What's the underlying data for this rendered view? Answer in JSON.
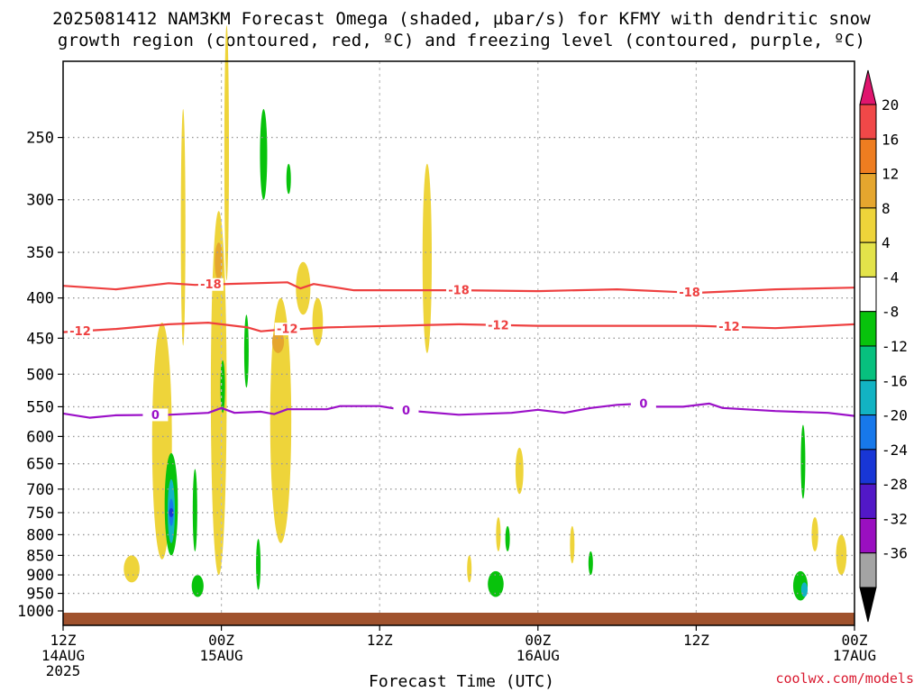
{
  "title": {
    "line1": "2025081412 NAM3KM Forecast Omega (shaded, µbar/s) for KFMY with dendritic snow",
    "line2": "growth region (contoured, red, ºC) and freezing level (contoured, purple, ºC)"
  },
  "credit": "coolwx.com/models",
  "colors": {
    "dendritic": "#ee4040",
    "freezing": "#9b10c8",
    "ground": "#a0522d",
    "grid": "#999999"
  },
  "chart_data": {
    "type": "heatmap",
    "xlabel": "Forecast Time (UTC)",
    "ylabel": "",
    "y_scale": "log-pressure",
    "ylim": [
      1000,
      200
    ],
    "xlim_hours": [
      0,
      60
    ],
    "yticks": [
      250,
      300,
      350,
      400,
      450,
      500,
      550,
      600,
      650,
      700,
      750,
      800,
      850,
      900,
      950,
      1000
    ],
    "xticks": [
      {
        "hour": 0,
        "lines": [
          "12Z",
          "14AUG",
          "2025"
        ]
      },
      {
        "hour": 12,
        "lines": [
          "00Z",
          "15AUG"
        ]
      },
      {
        "hour": 24,
        "lines": [
          "12Z"
        ]
      },
      {
        "hour": 36,
        "lines": [
          "00Z",
          "16AUG"
        ]
      },
      {
        "hour": 48,
        "lines": [
          "12Z"
        ]
      },
      {
        "hour": 60,
        "lines": [
          "00Z",
          "17AUG"
        ]
      }
    ],
    "colorbar": {
      "labels": [
        "20",
        "16",
        "12",
        "8",
        "4",
        "-4",
        "-8",
        "-12",
        "-16",
        "-20",
        "-24",
        "-28",
        "-32",
        "-36"
      ],
      "colors": [
        "#e0156e",
        "#f04848",
        "#ee7d20",
        "#e5a62e",
        "#eed43a",
        "#e3e34a",
        "#ffffff",
        "#08c30c",
        "#07c07e",
        "#12b3c3",
        "#1778ea",
        "#1836d6",
        "#5218c7",
        "#9a0fc0",
        "#a4a4a4",
        "#000000"
      ]
    },
    "dendritic_contours": [
      {
        "value": -18,
        "label": "-18",
        "points": [
          [
            0,
            386
          ],
          [
            4,
            390
          ],
          [
            8,
            383
          ],
          [
            10,
            385
          ],
          [
            17,
            382
          ],
          [
            18,
            389
          ],
          [
            19,
            384
          ],
          [
            22,
            391
          ],
          [
            30,
            391
          ],
          [
            36,
            392
          ],
          [
            42,
            390
          ],
          [
            48,
            394
          ],
          [
            54,
            390
          ],
          [
            60,
            388
          ]
        ],
        "label_hours": [
          11.2,
          30,
          47.5
        ]
      },
      {
        "value": -12,
        "label": "-12",
        "points": [
          [
            0,
            442
          ],
          [
            4,
            438
          ],
          [
            8,
            432
          ],
          [
            11,
            430
          ],
          [
            14,
            436
          ],
          [
            15,
            441
          ],
          [
            17,
            438
          ],
          [
            18,
            438
          ],
          [
            20,
            436
          ],
          [
            30,
            432
          ],
          [
            36,
            434
          ],
          [
            42,
            434
          ],
          [
            48,
            434
          ],
          [
            54,
            437
          ],
          [
            60,
            432
          ]
        ],
        "label_hours": [
          1.3,
          17,
          33,
          50.5
        ]
      }
    ],
    "freezing_contour": {
      "value": 0,
      "label": "0",
      "points": [
        [
          0,
          561
        ],
        [
          2,
          568
        ],
        [
          4,
          564
        ],
        [
          8,
          563
        ],
        [
          11,
          560
        ],
        [
          12,
          552
        ],
        [
          13,
          560
        ],
        [
          15,
          558
        ],
        [
          16,
          562
        ],
        [
          17,
          554
        ],
        [
          20,
          554
        ],
        [
          21,
          549
        ],
        [
          24,
          549
        ],
        [
          26,
          556
        ],
        [
          30,
          563
        ],
        [
          34,
          560
        ],
        [
          36,
          555
        ],
        [
          38,
          560
        ],
        [
          40,
          552
        ],
        [
          42,
          547
        ],
        [
          44,
          545
        ],
        [
          45,
          550
        ],
        [
          47,
          550
        ],
        [
          49,
          545
        ],
        [
          50,
          552
        ],
        [
          54,
          557
        ],
        [
          58,
          560
        ],
        [
          60,
          565
        ]
      ],
      "label_hours": [
        7,
        26,
        44
      ]
    },
    "omega_regions": [
      {
        "value": 4,
        "band": "4 to 8",
        "hour": 9.1,
        "top": 230,
        "bottom": 460,
        "width": 0.35
      },
      {
        "value": 4,
        "band": "4 to 8",
        "hour": 12.4,
        "top": 180,
        "bottom": 380,
        "width": 0.35
      },
      {
        "value": 4,
        "band": "4 to 8",
        "hour": 11.8,
        "top": 310,
        "bottom": 900,
        "width": 1.2
      },
      {
        "value": 8,
        "band": "8 to 12",
        "hour": 11.8,
        "top": 340,
        "bottom": 380,
        "width": 0.6
      },
      {
        "value": 4,
        "band": "4 to 8",
        "hour": 16.5,
        "top": 400,
        "bottom": 820,
        "width": 1.6
      },
      {
        "value": 8,
        "band": "8 to 12",
        "hour": 16.3,
        "top": 440,
        "bottom": 470,
        "width": 0.9
      },
      {
        "value": 4,
        "band": "4 to 8",
        "hour": 18.2,
        "top": 360,
        "bottom": 420,
        "width": 1.1
      },
      {
        "value": 4,
        "band": "4 to 8",
        "hour": 19.3,
        "top": 400,
        "bottom": 460,
        "width": 0.8
      },
      {
        "value": 4,
        "band": "4 to 8",
        "hour": 7.5,
        "top": 430,
        "bottom": 860,
        "width": 1.5
      },
      {
        "value": 4,
        "band": "4 to 8",
        "hour": 5.2,
        "top": 850,
        "bottom": 920,
        "width": 1.2
      },
      {
        "value": 4,
        "band": "4 to 8",
        "hour": 27.6,
        "top": 270,
        "bottom": 470,
        "width": 0.7
      },
      {
        "value": 4,
        "band": "4 to 8",
        "hour": 34.6,
        "top": 620,
        "bottom": 710,
        "width": 0.6
      },
      {
        "value": 4,
        "band": "4 to 8",
        "hour": 33.0,
        "top": 760,
        "bottom": 840,
        "width": 0.35
      },
      {
        "value": 4,
        "band": "4 to 8",
        "hour": 30.8,
        "top": 850,
        "bottom": 920,
        "width": 0.3
      },
      {
        "value": 4,
        "band": "4 to 8",
        "hour": 38.6,
        "top": 780,
        "bottom": 870,
        "width": 0.3
      },
      {
        "value": 4,
        "band": "4 to 8",
        "hour": 57.0,
        "top": 760,
        "bottom": 840,
        "width": 0.5
      },
      {
        "value": 4,
        "band": "4 to 8",
        "hour": 59.0,
        "top": 800,
        "bottom": 900,
        "width": 0.8
      },
      {
        "value": -4,
        "band": "-4 to -8",
        "hour": 15.2,
        "top": 230,
        "bottom": 300,
        "width": 0.55
      },
      {
        "value": -4,
        "band": "-4 to -8",
        "hour": 17.1,
        "top": 270,
        "bottom": 295,
        "width": 0.25
      },
      {
        "value": -4,
        "band": "-4 to -8",
        "hour": 13.9,
        "top": 420,
        "bottom": 520,
        "width": 0.25
      },
      {
        "value": -4,
        "band": "-4 to -8",
        "hour": 12.1,
        "top": 480,
        "bottom": 560,
        "width": 0.35
      },
      {
        "value": -4,
        "band": "-4 to -8",
        "hour": 8.2,
        "top": 630,
        "bottom": 850,
        "width": 1.0
      },
      {
        "value": -12,
        "band": "-12 to -16",
        "hour": 8.2,
        "top": 680,
        "bottom": 820,
        "width": 0.55
      },
      {
        "value": -16,
        "band": "-16 to -20",
        "hour": 8.2,
        "top": 720,
        "bottom": 780,
        "width": 0.35
      },
      {
        "value": -20,
        "band": "-20 to -24",
        "hour": 8.2,
        "top": 740,
        "bottom": 760,
        "width": 0.15
      },
      {
        "value": -4,
        "band": "-4 to -8",
        "hour": 10.0,
        "top": 660,
        "bottom": 840,
        "width": 0.25
      },
      {
        "value": -4,
        "band": "-4 to -8",
        "hour": 10.2,
        "top": 900,
        "bottom": 960,
        "width": 0.9
      },
      {
        "value": -4,
        "band": "-4 to -8",
        "hour": 14.8,
        "top": 810,
        "bottom": 940,
        "width": 0.3
      },
      {
        "value": -4,
        "band": "-4 to -8",
        "hour": 32.8,
        "top": 890,
        "bottom": 960,
        "width": 1.2
      },
      {
        "value": -4,
        "band": "-4 to -8",
        "hour": 33.7,
        "top": 780,
        "bottom": 840,
        "width": 0.3
      },
      {
        "value": -4,
        "band": "-4 to -8",
        "hour": 40.0,
        "top": 840,
        "bottom": 900,
        "width": 0.2
      },
      {
        "value": -4,
        "band": "-4 to -8",
        "hour": 56.1,
        "top": 580,
        "bottom": 720,
        "width": 0.3
      },
      {
        "value": -4,
        "band": "-4 to -8",
        "hour": 55.9,
        "top": 890,
        "bottom": 970,
        "width": 1.1
      },
      {
        "value": -12,
        "band": "-12 to -16",
        "hour": 56.2,
        "top": 920,
        "bottom": 960,
        "width": 0.5
      }
    ]
  }
}
